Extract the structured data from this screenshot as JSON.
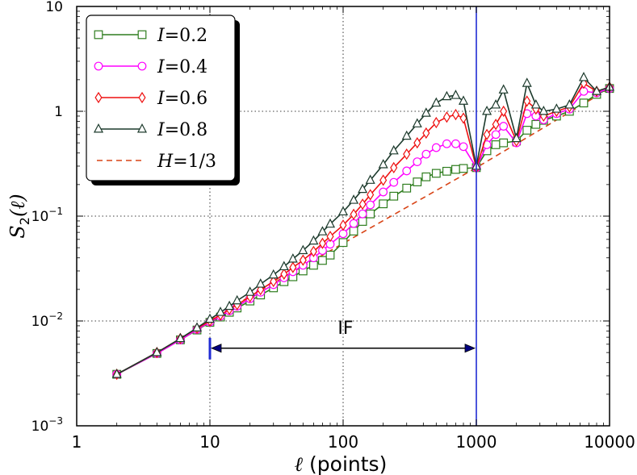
{
  "chart_data": {
    "type": "line",
    "xscale": "log",
    "yscale": "log",
    "xlim": [
      1,
      10000
    ],
    "ylim": [
      0.001,
      10
    ],
    "xlabel_sym": "ℓ",
    "xlabel_text": "(points)",
    "ylabel_sym": "S",
    "ylabel_sub": "2",
    "ylabel_arg": "(ℓ)",
    "xticks": [
      {
        "value": 1,
        "label": "1"
      },
      {
        "value": 10,
        "label": "10"
      },
      {
        "value": 100,
        "label": "100"
      },
      {
        "value": 1000,
        "label": "1000"
      },
      {
        "value": 10000,
        "label": "10000"
      }
    ],
    "yticks": [
      {
        "value": 0.001,
        "base": "10",
        "exp": "−3"
      },
      {
        "value": 0.01,
        "base": "10",
        "exp": "−2"
      },
      {
        "value": 0.1,
        "base": "10",
        "exp": "−1"
      },
      {
        "value": 1,
        "base": "1",
        "exp": ""
      },
      {
        "value": 10,
        "base": "10",
        "exp": ""
      }
    ],
    "grid": true,
    "legend_position": "top-left",
    "series": [
      {
        "name": "I=0.2",
        "sym": "I",
        "val": "=0.2",
        "color": "#2e7d1e",
        "marker": "square",
        "x": [
          2,
          4,
          6,
          8,
          10,
          12,
          14,
          16,
          20,
          24,
          30,
          36,
          42,
          50,
          60,
          70,
          80,
          100,
          120,
          140,
          160,
          200,
          240,
          300,
          360,
          420,
          500,
          600,
          700,
          800,
          1000,
          1200,
          1400,
          1600,
          2000,
          2400,
          2800,
          3200,
          4000,
          5000,
          6400,
          8000,
          10000
        ],
        "y": [
          0.0031,
          0.0049,
          0.0066,
          0.0082,
          0.0097,
          0.0109,
          0.0121,
          0.0133,
          0.0155,
          0.0177,
          0.0207,
          0.0237,
          0.0264,
          0.03,
          0.034,
          0.0378,
          0.0425,
          0.056,
          0.072,
          0.089,
          0.105,
          0.131,
          0.155,
          0.185,
          0.212,
          0.237,
          0.256,
          0.268,
          0.279,
          0.285,
          0.29,
          0.42,
          0.48,
          0.5,
          0.52,
          0.66,
          0.75,
          0.82,
          0.9,
          1.0,
          1.2,
          1.45,
          1.65
        ]
      },
      {
        "name": "I=0.4",
        "sym": "I",
        "val": "=0.4",
        "color": "#ff00ff",
        "marker": "circle",
        "x": [
          2,
          4,
          6,
          8,
          10,
          12,
          14,
          16,
          20,
          24,
          30,
          36,
          42,
          50,
          60,
          70,
          80,
          100,
          120,
          140,
          160,
          200,
          240,
          300,
          360,
          420,
          500,
          600,
          700,
          800,
          1000,
          1200,
          1400,
          1600,
          2000,
          2400,
          2800,
          3200,
          4000,
          5000,
          6400,
          8000,
          10000
        ],
        "y": [
          0.0031,
          0.0049,
          0.0066,
          0.0083,
          0.0098,
          0.0111,
          0.0125,
          0.0138,
          0.0163,
          0.0188,
          0.0222,
          0.0258,
          0.0295,
          0.034,
          0.04,
          0.047,
          0.054,
          0.068,
          0.085,
          0.105,
          0.128,
          0.17,
          0.21,
          0.27,
          0.33,
          0.39,
          0.45,
          0.49,
          0.49,
          0.46,
          0.29,
          0.48,
          0.6,
          0.72,
          0.5,
          0.95,
          0.9,
          0.83,
          0.95,
          1.05,
          1.55,
          1.5,
          1.65
        ]
      },
      {
        "name": "I=0.6",
        "sym": "I",
        "val": "=0.6",
        "color": "#ee1111",
        "marker": "diamond",
        "x": [
          2,
          4,
          6,
          8,
          10,
          12,
          14,
          16,
          20,
          24,
          30,
          36,
          42,
          50,
          60,
          70,
          80,
          100,
          120,
          140,
          160,
          200,
          240,
          300,
          360,
          420,
          500,
          600,
          700,
          800,
          1000,
          1200,
          1400,
          1600,
          2000,
          2400,
          2800,
          3200,
          4000,
          5000,
          6400,
          8000,
          10000
        ],
        "y": [
          0.0031,
          0.005,
          0.0068,
          0.0085,
          0.01,
          0.0114,
          0.0129,
          0.0143,
          0.017,
          0.0199,
          0.0238,
          0.028,
          0.0324,
          0.038,
          0.046,
          0.055,
          0.064,
          0.082,
          0.104,
          0.13,
          0.16,
          0.22,
          0.29,
          0.39,
          0.5,
          0.62,
          0.78,
          0.88,
          0.93,
          0.86,
          0.29,
          0.6,
          0.75,
          1.0,
          0.52,
          1.25,
          1.05,
          0.9,
          1.0,
          1.1,
          1.85,
          1.55,
          1.7
        ]
      },
      {
        "name": "I=0.8",
        "sym": "I",
        "val": "=0.8",
        "color": "#1c3a2c",
        "marker": "triangle",
        "x": [
          2,
          4,
          6,
          8,
          10,
          12,
          14,
          16,
          20,
          24,
          30,
          36,
          42,
          50,
          60,
          70,
          80,
          100,
          120,
          140,
          160,
          200,
          240,
          300,
          360,
          420,
          500,
          600,
          700,
          800,
          1000,
          1200,
          1400,
          1600,
          2000,
          2400,
          2800,
          3200,
          4000,
          5000,
          6400,
          8000,
          10000
        ],
        "y": [
          0.0031,
          0.005,
          0.0068,
          0.0086,
          0.0104,
          0.0121,
          0.0138,
          0.0156,
          0.0188,
          0.0225,
          0.0275,
          0.033,
          0.039,
          0.047,
          0.058,
          0.071,
          0.084,
          0.11,
          0.142,
          0.18,
          0.22,
          0.31,
          0.42,
          0.58,
          0.76,
          0.96,
          1.2,
          1.38,
          1.42,
          1.25,
          0.3,
          1.0,
          1.15,
          1.6,
          0.55,
          1.85,
          1.15,
          1.0,
          1.05,
          1.15,
          2.1,
          1.55,
          1.7
        ]
      },
      {
        "name": "H=1/3",
        "sym": "H",
        "val": "=1/3",
        "color": "#d84315",
        "marker": "none",
        "dashed": true,
        "x": [
          10,
          1000,
          10000
        ],
        "y": [
          0.0104,
          0.29,
          1.65
        ]
      }
    ],
    "annotations": {
      "if_label": "IF",
      "vline_x": 1000,
      "arrow_from": 10,
      "arrow_to": 1000,
      "arrow_y": 0.0055,
      "tick_y_low": 0.0043,
      "tick_y_high": 0.0069,
      "line_color": "#1f2bd4"
    }
  }
}
